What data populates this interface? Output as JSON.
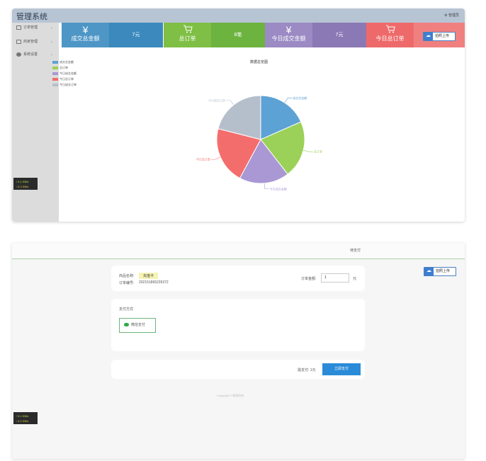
{
  "admin": {
    "title": "管理系统",
    "header_right": "管理员",
    "sidebar": [
      {
        "label": "订单管理"
      },
      {
        "label": "商家管理"
      },
      {
        "label": "系统设置"
      }
    ],
    "badge": {
      "line1": "↑ 0.1 KB/s",
      "line2": "↓ 0.2 KB/s"
    },
    "cards": [
      {
        "label": "成交总金额",
        "value": "7元",
        "symbol": "¥",
        "color_label": "#4e96c6",
        "color_value": "#3b89bd"
      },
      {
        "label": "总订单",
        "value": "8笔",
        "symbol": "🛒",
        "color_label": "#7fbf45",
        "color_value": "#6db33f"
      },
      {
        "label": "今日成交金额",
        "value": "7元",
        "symbol": "¥",
        "color_label": "#9b8ac4",
        "color_value": "#8a79b5"
      },
      {
        "label": "今日总订单",
        "value": "",
        "symbol": "🛒",
        "color_label": "#ee6a6a",
        "color_value": "#f08080"
      }
    ],
    "upload_button": "拍照上传",
    "chart_data": {
      "type": "pie",
      "title": "数据总览图",
      "categories": [
        "成交总金额",
        "总订单",
        "今日成交金额",
        "今日总订单",
        "今日成交订单"
      ],
      "values": [
        7,
        8,
        7,
        8,
        8
      ],
      "colors": [
        "#5da2d5",
        "#9bd158",
        "#a998d4",
        "#f46d6d",
        "#b5bfcc"
      ],
      "legend": "top-left"
    }
  },
  "payment": {
    "header_text": "待支付",
    "upload_button": "拍照上传",
    "product_label": "商品名称:",
    "product_value": "充值卡",
    "order_label": "订单编号:",
    "order_value": "202151865235372",
    "amount_label": "订单金额:",
    "amount_value": "1",
    "amount_unit": "元",
    "pay_method_label": "支付方式",
    "wechat_label": "微信支付",
    "total_text": "需支付: 1元",
    "pay_button": "立即支付",
    "copyright": "Copyright © 版权所有",
    "badge": {
      "line1": "↑ 0.1 KB/s",
      "line2": "↓ 0.2 KB/s"
    }
  }
}
